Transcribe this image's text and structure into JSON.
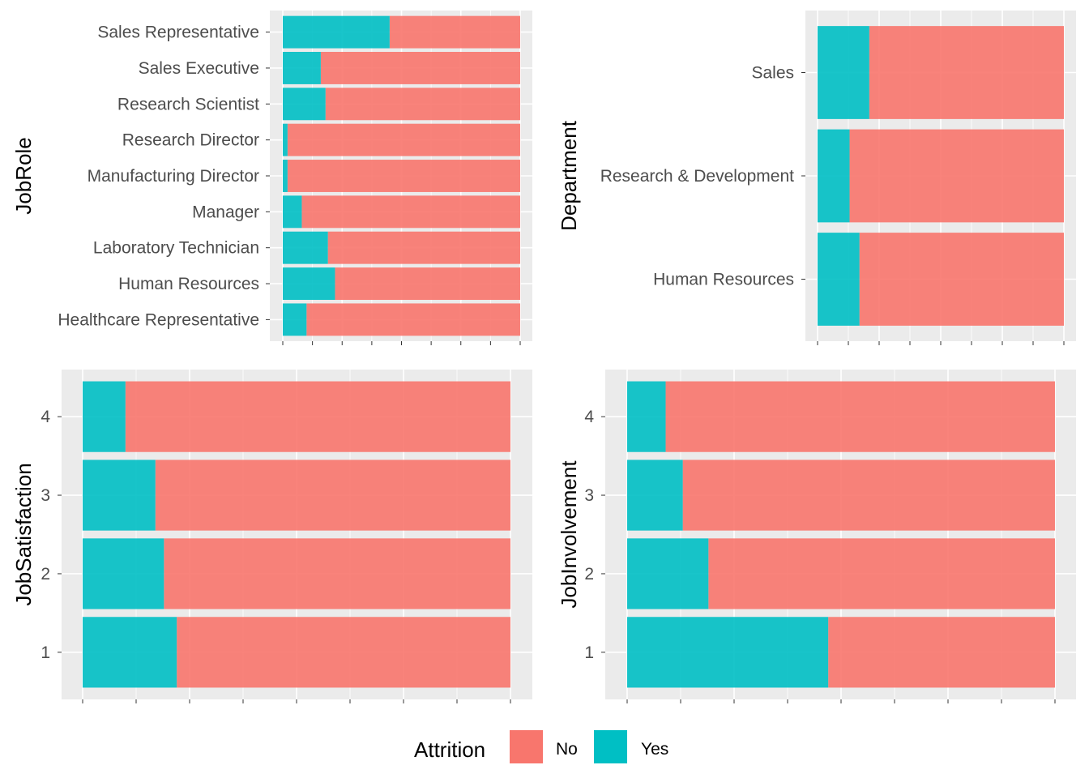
{
  "colors": {
    "no": "#F8766D",
    "yes": "#00BFC4",
    "panel": "#EBEBEB",
    "grid": "#FFFFFF",
    "tick_mark": "#333333"
  },
  "legend": {
    "title": "Attrition",
    "items": [
      {
        "label": "No",
        "color": "#F8766D"
      },
      {
        "label": "Yes",
        "color": "#00BFC4"
      }
    ]
  },
  "chart_data": [
    {
      "type": "bar",
      "orientation": "horizontal",
      "stacked": "proportion",
      "ylabel": "JobRole",
      "categories": [
        "Sales Representative",
        "Sales Executive",
        "Research Scientist",
        "Research Director",
        "Manufacturing Director",
        "Manager",
        "Laboratory Technician",
        "Human Resources",
        "Healthcare Representative"
      ],
      "yes_share": [
        0.45,
        0.16,
        0.18,
        0.02,
        0.02,
        0.08,
        0.19,
        0.22,
        0.1
      ],
      "xlim": [
        0,
        1
      ],
      "x_tick_labels": "none"
    },
    {
      "type": "bar",
      "orientation": "horizontal",
      "stacked": "proportion",
      "ylabel": "Department",
      "categories": [
        "Sales",
        "Research & Development",
        "Human Resources"
      ],
      "yes_share": [
        0.21,
        0.13,
        0.17
      ],
      "xlim": [
        0,
        1
      ],
      "x_tick_labels": "none"
    },
    {
      "type": "bar",
      "orientation": "horizontal",
      "stacked": "proportion",
      "ylabel": "JobSatisfaction",
      "categories": [
        "4",
        "3",
        "2",
        "1"
      ],
      "yes_share": [
        0.1,
        0.17,
        0.19,
        0.22
      ],
      "xlim": [
        0,
        1
      ],
      "x_tick_labels": "none"
    },
    {
      "type": "bar",
      "orientation": "horizontal",
      "stacked": "proportion",
      "ylabel": "JobInvolvement",
      "categories": [
        "4",
        "3",
        "2",
        "1"
      ],
      "yes_share": [
        0.09,
        0.13,
        0.19,
        0.47
      ],
      "xlim": [
        0,
        1
      ],
      "x_tick_labels": "none"
    }
  ]
}
